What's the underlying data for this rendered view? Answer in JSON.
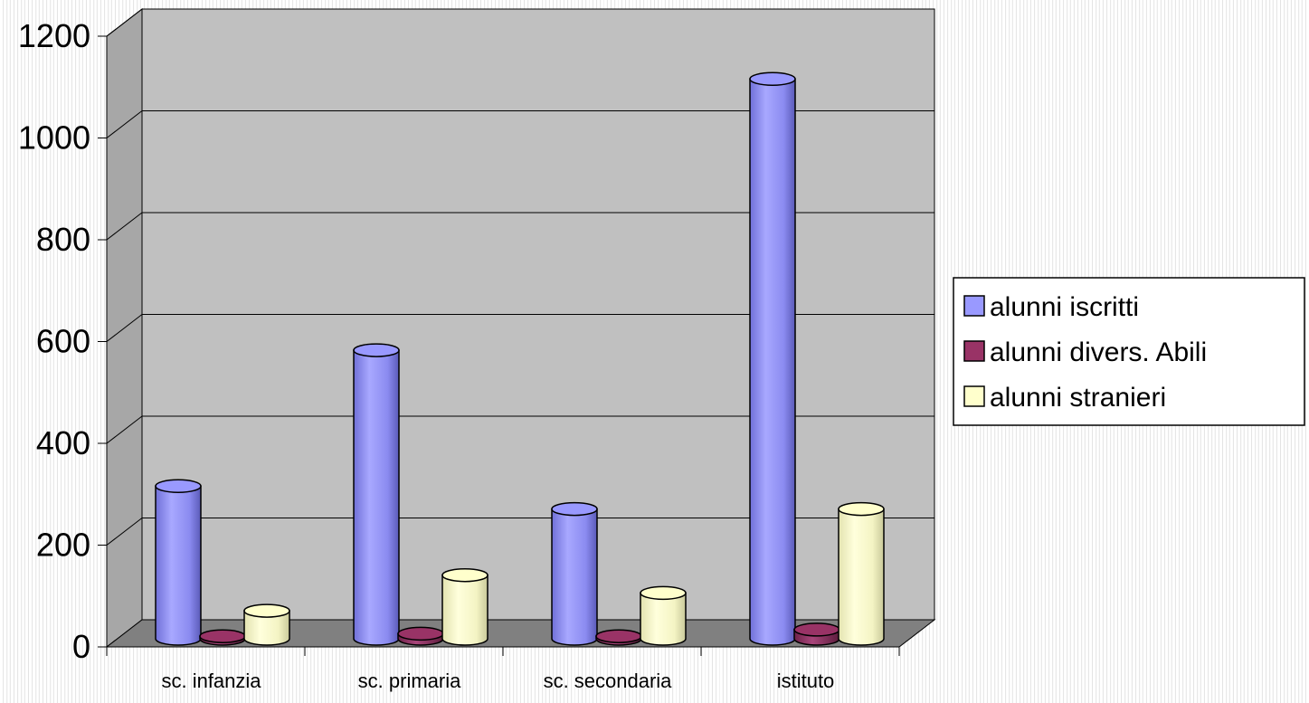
{
  "chart_data": {
    "type": "bar",
    "categories": [
      "sc. infanzia",
      "sc. primaria",
      "sc. secondaria",
      "istituto"
    ],
    "series": [
      {
        "name": "alunni iscritti",
        "values": [
          300,
          567,
          255,
          1100
        ],
        "color": "#9999ff"
      },
      {
        "name": "alunni divers. Abili",
        "values": [
          5,
          10,
          5,
          18
        ],
        "color": "#993366"
      },
      {
        "name": "alunni stranieri",
        "values": [
          55,
          125,
          90,
          255
        ],
        "color": "#ffffcc"
      }
    ],
    "ylim": [
      0,
      1200
    ],
    "yticks": [
      "0",
      "200",
      "400",
      "600",
      "800",
      "1000",
      "1200"
    ],
    "grid": true,
    "legend_position": "right",
    "style": "3d-cylinder"
  }
}
